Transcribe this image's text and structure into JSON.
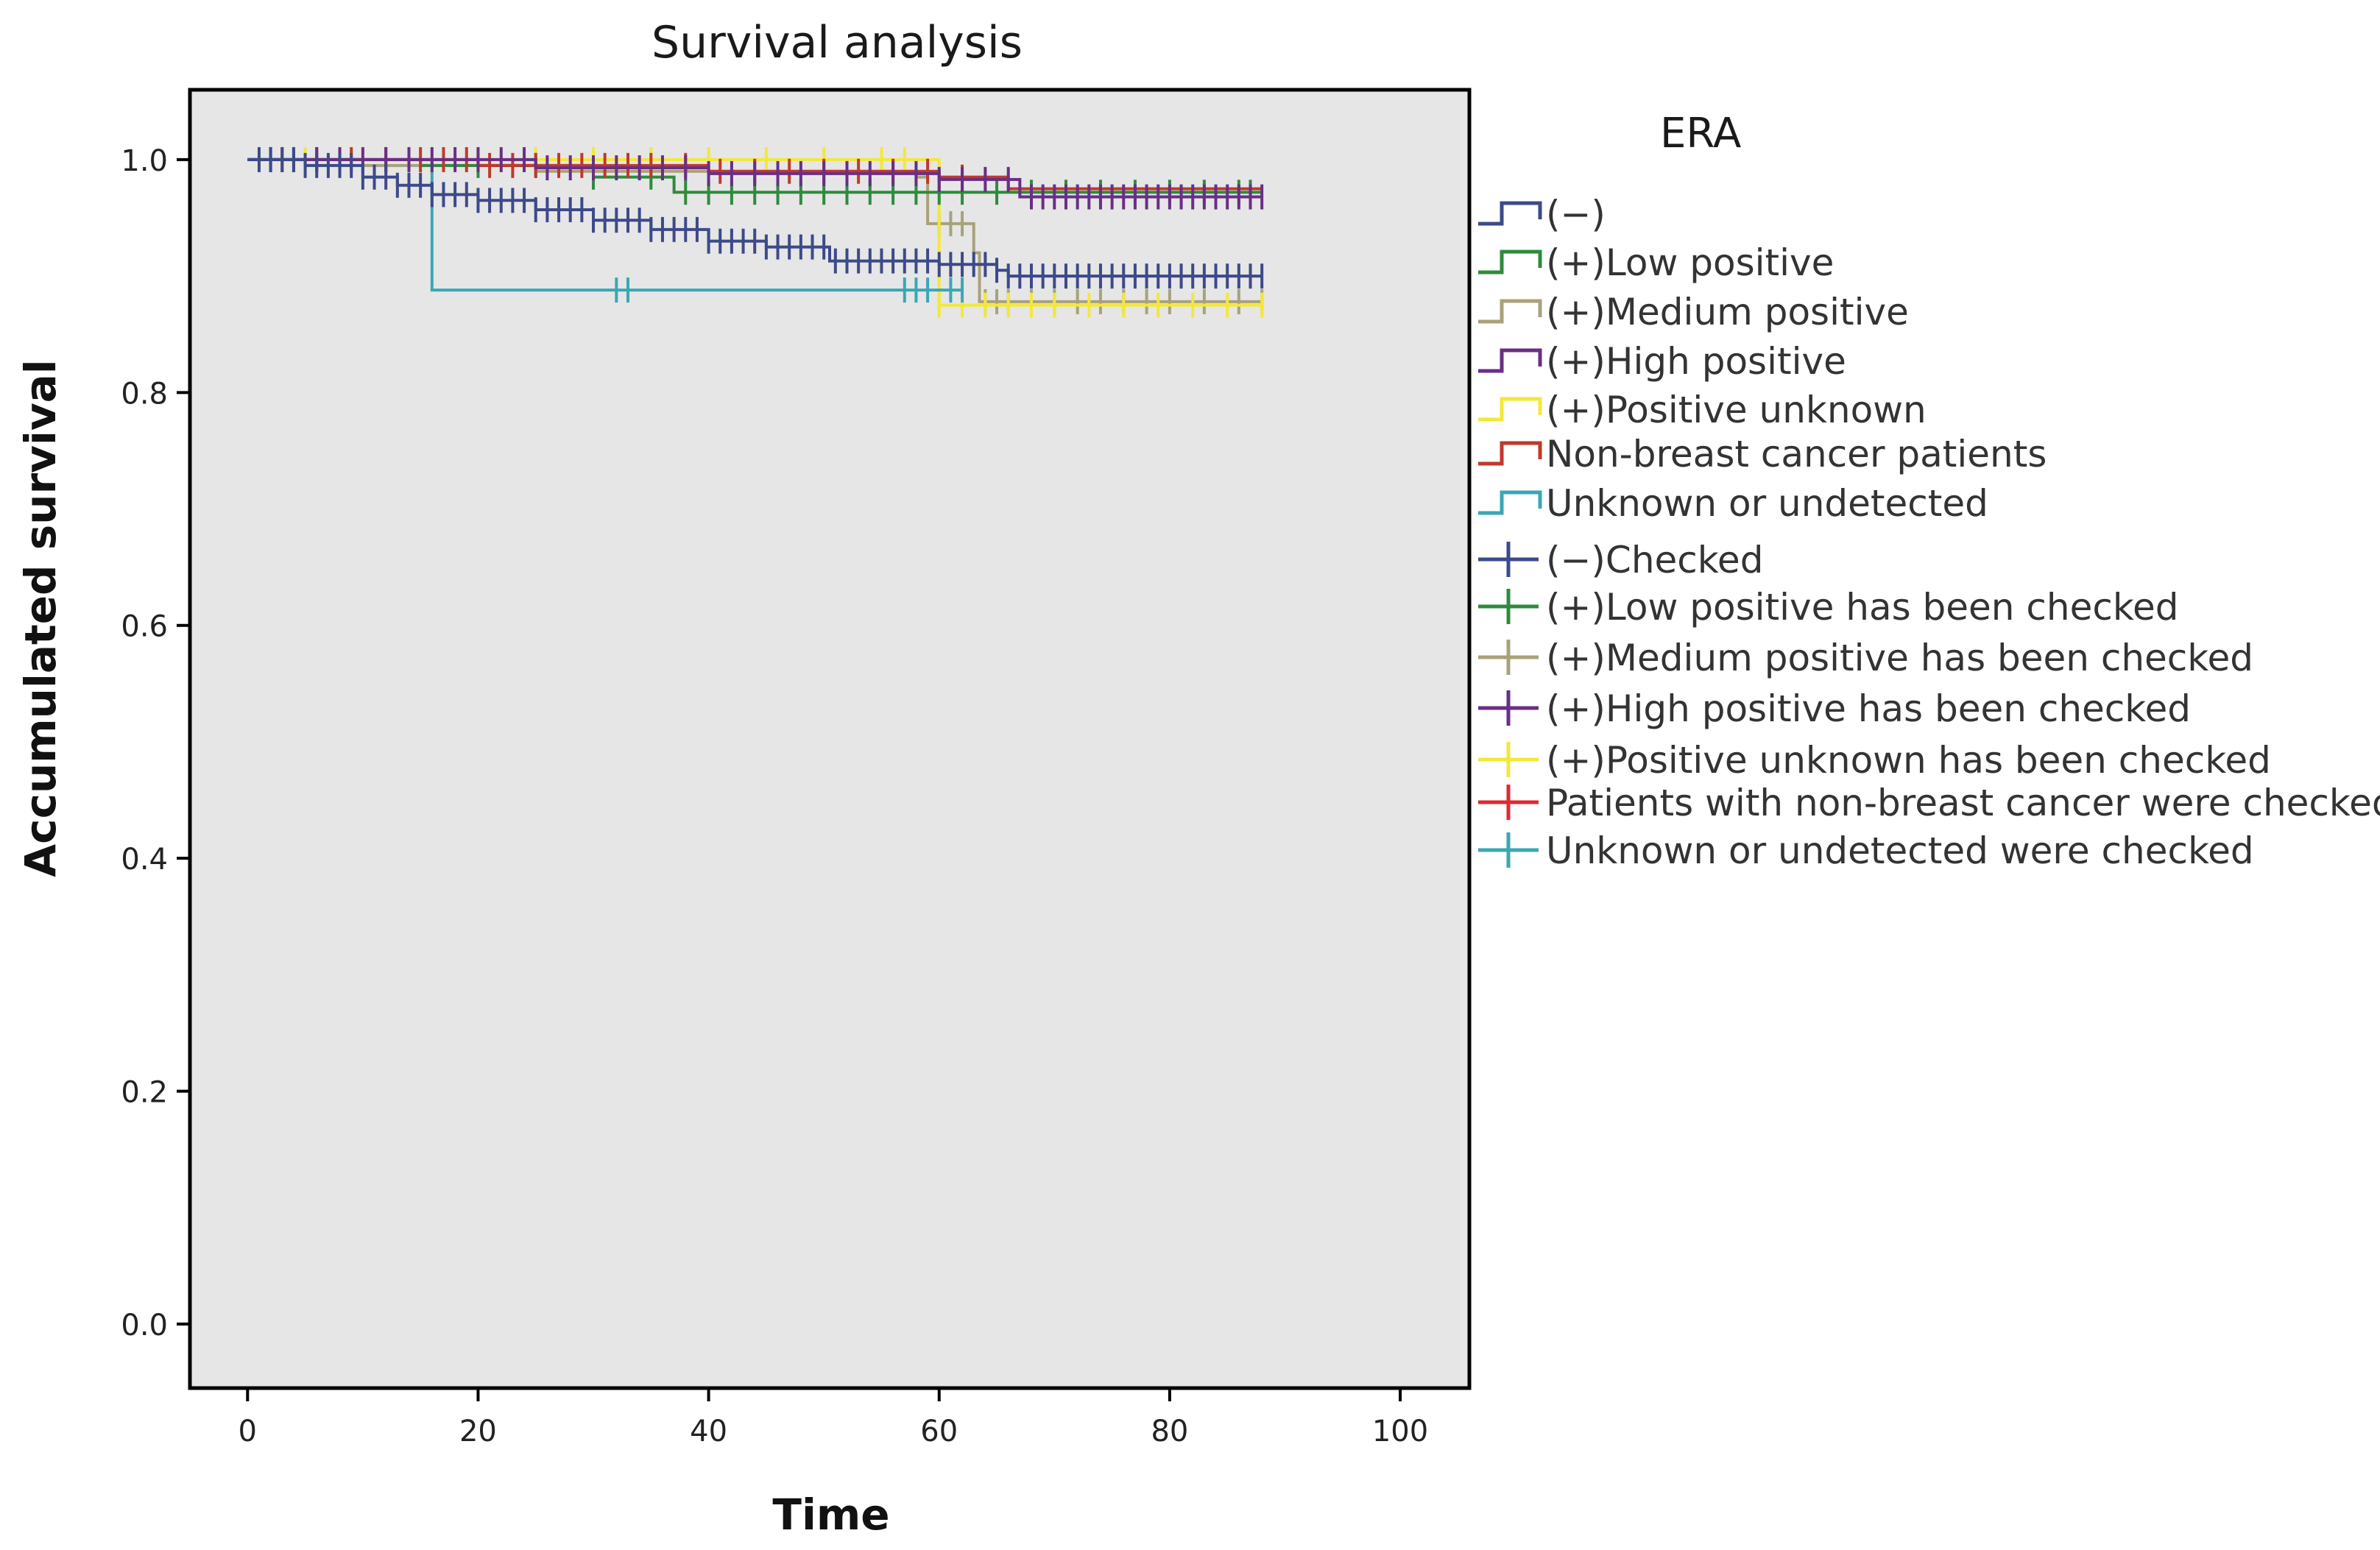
{
  "chart_data": {
    "type": "line",
    "title": "Survival analysis",
    "xlabel": "Time",
    "ylabel": "Accumulated survival",
    "xlim": [
      -5,
      106
    ],
    "ylim": [
      -0.055,
      1.06
    ],
    "x_ticks": [
      0,
      20,
      40,
      60,
      80,
      100
    ],
    "x_tick_labels": [
      "0",
      "20",
      "40",
      "60",
      "80",
      "100"
    ],
    "y_ticks": [
      0.0,
      0.2,
      0.4,
      0.6,
      0.8,
      1.0
    ],
    "y_tick_labels": [
      "0.0",
      "0.2",
      "0.4",
      "0.6",
      "0.8",
      "1.0"
    ],
    "grid": false,
    "plot_background": "#e6e6e6",
    "legend": {
      "title": "ERA",
      "placement": "right",
      "entries": [
        {
          "label": "(−)",
          "marker": "step",
          "color": "#3c4a8a"
        },
        {
          "label": "(+)Low positive",
          "marker": "step",
          "color": "#2e8b3c"
        },
        {
          "label": "(+)Medium positive",
          "marker": "step",
          "color": "#a8a27a"
        },
        {
          "label": "(+)High positive",
          "marker": "step",
          "color": "#6a2e86"
        },
        {
          "label": "(+)Positive unknown",
          "marker": "step",
          "color": "#f2e83a"
        },
        {
          "label": "Non-breast cancer patients",
          "marker": "step",
          "color": "#c0392b"
        },
        {
          "label": "Unknown or undetected",
          "marker": "step",
          "color": "#3aa7b4"
        },
        {
          "label": "(−)Checked",
          "marker": "censor",
          "color": "#3c4a8a"
        },
        {
          "label": "(+)Low positive has been checked",
          "marker": "censor",
          "color": "#2e8b3c"
        },
        {
          "label": "(+)Medium positive has been checked",
          "marker": "censor",
          "color": "#a8a27a"
        },
        {
          "label": "(+)High positive has been checked",
          "marker": "censor",
          "color": "#6a2e86"
        },
        {
          "label": "(+)Positive unknown has been checked",
          "marker": "censor",
          "color": "#f2e83a"
        },
        {
          "label": "Patients with non-breast cancer were checked",
          "marker": "censor",
          "color": "#e0282f"
        },
        {
          "label": "Unknown or undetected were checked",
          "marker": "censor",
          "color": "#3aa7b4"
        }
      ]
    },
    "series": [
      {
        "color": "#a8a27a",
        "steps": [
          [
            0,
            1.0
          ],
          [
            10,
            0.995
          ],
          [
            25,
            0.99
          ],
          [
            58,
            0.985
          ],
          [
            59,
            0.945
          ],
          [
            63,
            0.92
          ],
          [
            63.5,
            0.878
          ],
          [
            88,
            0.878
          ]
        ],
        "censors": [
          60,
          61,
          62,
          64,
          65,
          66,
          68,
          70,
          72,
          74,
          76,
          78,
          80,
          83,
          86,
          88
        ]
      },
      {
        "color": "#f2e83a",
        "steps": [
          [
            0,
            1.0
          ],
          [
            58,
            1.0
          ],
          [
            60,
            0.875
          ],
          [
            88,
            0.875
          ]
        ],
        "censors": [
          5,
          8,
          12,
          20,
          25,
          30,
          35,
          40,
          45,
          50,
          55,
          57,
          60,
          62,
          64,
          66,
          68,
          70,
          73,
          76,
          79,
          82,
          85,
          88
        ]
      },
      {
        "color": "#3aa7b4",
        "steps": [
          [
            0,
            1.0
          ],
          [
            16,
            1.0
          ],
          [
            16,
            0.888
          ],
          [
            62,
            0.888
          ]
        ],
        "censors": [
          32,
          33,
          57,
          58,
          59,
          61,
          62
        ]
      },
      {
        "color": "#2e8b3c",
        "steps": [
          [
            0,
            1.0
          ],
          [
            15,
            0.995
          ],
          [
            30,
            0.985
          ],
          [
            37,
            0.972
          ],
          [
            88,
            0.972
          ]
        ],
        "censors": [
          20,
          25,
          30,
          35,
          38,
          40,
          42,
          44,
          46,
          48,
          50,
          52,
          54,
          56,
          58,
          60,
          62,
          65,
          68,
          71,
          74,
          77,
          80,
          83,
          86,
          87
        ]
      },
      {
        "color": "#c0392b",
        "steps": [
          [
            0,
            1.0
          ],
          [
            20,
            0.995
          ],
          [
            40,
            0.99
          ],
          [
            60,
            0.985
          ],
          [
            66,
            0.975
          ],
          [
            88,
            0.975
          ]
        ],
        "censors": [
          3,
          6,
          9,
          12,
          15,
          17,
          19,
          21,
          23,
          25,
          27,
          29,
          31,
          33,
          35,
          38,
          41,
          44,
          47,
          50,
          53,
          56,
          59,
          62
        ]
      },
      {
        "color": "#6a2e86",
        "steps": [
          [
            0,
            1.0
          ],
          [
            25,
            0.993
          ],
          [
            40,
            0.988
          ],
          [
            60,
            0.983
          ],
          [
            67,
            0.968
          ],
          [
            88,
            0.968
          ]
        ],
        "censors": [
          2,
          4,
          6,
          8,
          10,
          12,
          14,
          16,
          18,
          20,
          22,
          24,
          26,
          28,
          30,
          32,
          34,
          36,
          38,
          40,
          42,
          44,
          46,
          48,
          50,
          52,
          54,
          56,
          58,
          60,
          62,
          64,
          66,
          68,
          69,
          70,
          71,
          72,
          73,
          74,
          75,
          76,
          77,
          78,
          79,
          80,
          81,
          82,
          83,
          84,
          85,
          86,
          87,
          88
        ]
      },
      {
        "color": "#3c4a8a",
        "steps": [
          [
            0,
            1.0
          ],
          [
            5,
            0.995
          ],
          [
            10,
            0.985
          ],
          [
            13,
            0.978
          ],
          [
            16,
            0.97
          ],
          [
            20,
            0.965
          ],
          [
            25,
            0.957
          ],
          [
            30,
            0.948
          ],
          [
            35,
            0.94
          ],
          [
            40,
            0.93
          ],
          [
            45,
            0.925
          ],
          [
            50.5,
            0.913
          ],
          [
            58,
            0.913
          ],
          [
            60,
            0.91
          ],
          [
            65,
            0.905
          ],
          [
            66,
            0.9
          ],
          [
            88,
            0.9
          ]
        ],
        "censors": [
          1,
          2,
          3,
          4,
          5,
          6,
          7,
          8,
          9,
          10,
          11,
          12,
          13,
          14,
          15,
          16,
          17,
          18,
          19,
          20,
          21,
          22,
          23,
          24,
          25,
          26,
          27,
          28,
          29,
          30,
          31,
          32,
          33,
          34,
          35,
          36,
          37,
          38,
          39,
          40,
          41,
          42,
          43,
          44,
          45,
          46,
          47,
          48,
          49,
          50,
          51,
          52,
          53,
          54,
          55,
          56,
          57,
          58,
          59,
          60,
          61,
          62,
          63,
          64,
          65,
          66,
          67,
          68,
          69,
          70,
          71,
          72,
          73,
          74,
          75,
          76,
          77,
          78,
          79,
          80,
          81,
          82,
          83,
          84,
          85,
          86,
          87,
          88
        ]
      }
    ]
  }
}
